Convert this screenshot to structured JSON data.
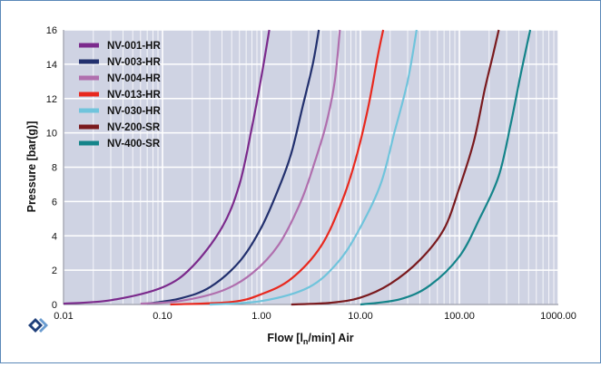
{
  "chart_data": {
    "type": "line",
    "xscale": "log",
    "xlim": [
      0.01,
      1000
    ],
    "ylim": [
      0,
      16
    ],
    "grid": true,
    "legend_position": "top-left",
    "xlabel_parts": [
      "Flow [l",
      "n",
      "/min] Air"
    ],
    "ylabel": "Pressure [bar(g)]",
    "x_ticks": [
      0.01,
      0.1,
      1,
      10,
      100,
      1000
    ],
    "x_tick_labels": [
      "0.01",
      "0.10",
      "1.00",
      "10.00",
      "100.00",
      "1000.00"
    ],
    "y_ticks": [
      0,
      2,
      4,
      6,
      8,
      10,
      12,
      14,
      16
    ],
    "y_tick_labels": [
      "0",
      "2",
      "4",
      "6",
      "8",
      "10",
      "12",
      "14",
      "16"
    ],
    "series": [
      {
        "name": "NV-001-HR",
        "color": "#7b2a8c",
        "points": [
          [
            0.01,
            0.05
          ],
          [
            0.03,
            0.25
          ],
          [
            0.1,
            1.0
          ],
          [
            0.2,
            2.2
          ],
          [
            0.4,
            4.5
          ],
          [
            0.6,
            7.0
          ],
          [
            0.8,
            10.3
          ],
          [
            1.0,
            13.3
          ],
          [
            1.2,
            16.0
          ]
        ]
      },
      {
        "name": "NV-003-HR",
        "color": "#22306e",
        "points": [
          [
            0.07,
            0.05
          ],
          [
            0.15,
            0.35
          ],
          [
            0.3,
            1.0
          ],
          [
            0.6,
            2.5
          ],
          [
            1.0,
            4.5
          ],
          [
            1.5,
            6.8
          ],
          [
            2.0,
            8.8
          ],
          [
            2.6,
            11.5
          ],
          [
            3.3,
            14.0
          ],
          [
            3.8,
            16.0
          ]
        ]
      },
      {
        "name": "NV-004-HR",
        "color": "#b06fae",
        "points": [
          [
            0.06,
            0.05
          ],
          [
            0.15,
            0.2
          ],
          [
            0.4,
            0.8
          ],
          [
            0.8,
            1.8
          ],
          [
            1.5,
            3.5
          ],
          [
            2.5,
            6.0
          ],
          [
            3.5,
            8.4
          ],
          [
            4.5,
            10.5
          ],
          [
            5.5,
            13.0
          ],
          [
            6.2,
            16.0
          ]
        ]
      },
      {
        "name": "NV-013-HR",
        "color": "#e8281e",
        "points": [
          [
            0.12,
            0.0
          ],
          [
            0.5,
            0.15
          ],
          [
            1.0,
            0.6
          ],
          [
            2.0,
            1.5
          ],
          [
            4.0,
            3.4
          ],
          [
            6.5,
            6.0
          ],
          [
            9.0,
            8.5
          ],
          [
            12.0,
            11.5
          ],
          [
            15.0,
            14.5
          ],
          [
            17.0,
            16.0
          ]
        ]
      },
      {
        "name": "NV-030-HR",
        "color": "#70c4dc",
        "points": [
          [
            0.3,
            0.0
          ],
          [
            1.0,
            0.2
          ],
          [
            3.0,
            1.0
          ],
          [
            6.0,
            2.5
          ],
          [
            10.0,
            4.5
          ],
          [
            16.0,
            7.0
          ],
          [
            22.0,
            10.0
          ],
          [
            30.0,
            13.0
          ],
          [
            37.0,
            16.0
          ]
        ]
      },
      {
        "name": "NV-200-SR",
        "color": "#7a1a1e",
        "points": [
          [
            2.0,
            0.0
          ],
          [
            5.0,
            0.1
          ],
          [
            10.0,
            0.4
          ],
          [
            20.0,
            1.2
          ],
          [
            40.0,
            2.6
          ],
          [
            70.0,
            4.4
          ],
          [
            100.0,
            6.8
          ],
          [
            140.0,
            9.5
          ],
          [
            180.0,
            12.5
          ],
          [
            220.0,
            14.6
          ],
          [
            250.0,
            16.0
          ]
        ]
      },
      {
        "name": "NV-400-SR",
        "color": "#14848a",
        "points": [
          [
            10.0,
            0.0
          ],
          [
            25.0,
            0.3
          ],
          [
            50.0,
            1.1
          ],
          [
            100.0,
            2.8
          ],
          [
            160.0,
            5.0
          ],
          [
            250.0,
            7.5
          ],
          [
            330.0,
            10.5
          ],
          [
            420.0,
            13.5
          ],
          [
            520.0,
            16.0
          ]
        ]
      }
    ]
  }
}
